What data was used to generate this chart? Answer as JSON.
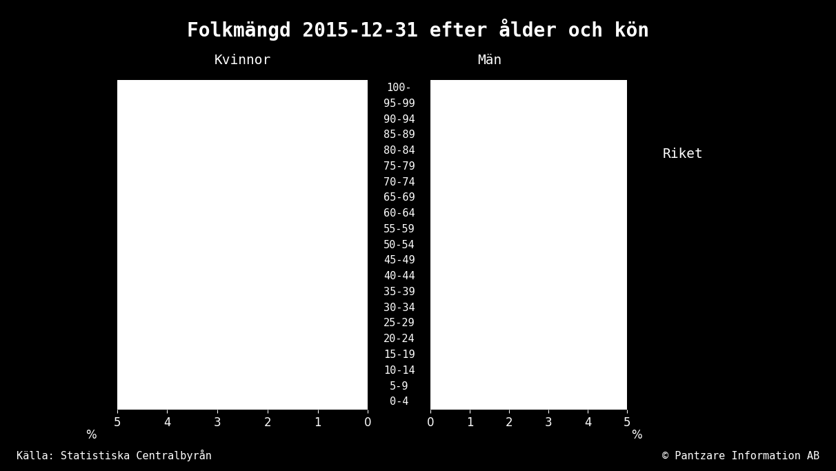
{
  "title": "Folkmängd 2015-12-31 efter ålder och kön",
  "background_color": "#000000",
  "text_color": "#ffffff",
  "bar_color": "#ffffff",
  "left_label": "Kvinnor",
  "right_label": "Män",
  "legend_label": "Riket",
  "source_left": "Källa: Statistiska Centralbyrån",
  "source_right": "© Pantzare Information AB",
  "age_groups": [
    "100-",
    "95-99",
    "90-94",
    "85-89",
    "80-84",
    "75-79",
    "70-74",
    "65-69",
    "60-64",
    "55-59",
    "50-54",
    "45-49",
    "40-44",
    "35-39",
    "30-34",
    "25-29",
    "20-24",
    "15-19",
    "10-14",
    "5-9",
    "0-4"
  ],
  "x_max": 5,
  "title_fontsize": 20,
  "label_fontsize": 14,
  "tick_fontsize": 12,
  "source_fontsize": 11,
  "age_fontsize": 11
}
